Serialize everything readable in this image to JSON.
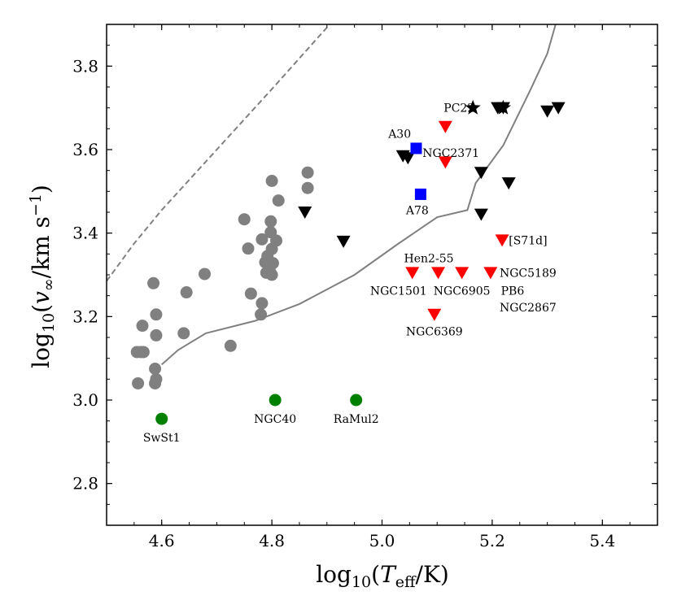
{
  "chart_data": {
    "type": "scatter",
    "xlabel": "log10(Teff/K)",
    "ylabel": "log10(v∞/km s−1)",
    "xlim": [
      4.5,
      5.5
    ],
    "ylim": [
      2.7,
      3.9
    ],
    "xticks": [
      "4.6",
      "4.8",
      "5.0",
      "5.2",
      "5.4"
    ],
    "yticks": [
      "2.8",
      "3.0",
      "3.2",
      "3.4",
      "3.6",
      "3.8"
    ],
    "grid": false,
    "series": [
      {
        "marker": "circle",
        "color": "#808080",
        "points": [
          [
            4.557,
            3.04
          ],
          [
            4.555,
            3.115
          ],
          [
            4.562,
            3.115
          ],
          [
            4.567,
            3.115
          ],
          [
            4.565,
            3.178
          ],
          [
            4.585,
            3.28
          ],
          [
            4.59,
            3.205
          ],
          [
            4.59,
            3.155
          ],
          [
            4.588,
            3.075
          ],
          [
            4.59,
            3.05
          ],
          [
            4.588,
            3.04
          ],
          [
            4.645,
            3.258
          ],
          [
            4.64,
            3.16
          ],
          [
            4.678,
            3.302
          ],
          [
            4.725,
            3.13
          ],
          [
            4.75,
            3.433
          ],
          [
            4.757,
            3.363
          ],
          [
            4.762,
            3.255
          ],
          [
            4.78,
            3.205
          ],
          [
            4.782,
            3.232
          ],
          [
            4.782,
            3.385
          ],
          [
            4.788,
            3.33
          ],
          [
            4.79,
            3.305
          ],
          [
            4.792,
            3.345
          ],
          [
            4.796,
            3.31
          ],
          [
            4.798,
            3.428
          ],
          [
            4.798,
            3.402
          ],
          [
            4.8,
            3.362
          ],
          [
            4.802,
            3.328
          ],
          [
            4.8,
            3.3
          ],
          [
            4.8,
            3.525
          ],
          [
            4.808,
            3.382
          ],
          [
            4.812,
            3.478
          ],
          [
            4.865,
            3.545
          ],
          [
            4.865,
            3.508
          ]
        ]
      },
      {
        "marker": "triangle-down",
        "color": "#000000",
        "points": [
          [
            4.86,
            3.45
          ],
          [
            4.93,
            3.38
          ],
          [
            5.038,
            3.585
          ],
          [
            5.047,
            3.58
          ],
          [
            5.18,
            3.545
          ],
          [
            5.18,
            3.445
          ],
          [
            5.23,
            3.52
          ],
          [
            5.21,
            3.7
          ],
          [
            5.22,
            3.7
          ],
          [
            5.3,
            3.692
          ],
          [
            5.32,
            3.7
          ]
        ]
      },
      {
        "marker": "star",
        "color": "#000000",
        "points": [
          [
            5.165,
            3.7
          ],
          [
            5.22,
            3.7
          ]
        ]
      },
      {
        "marker": "triangle-down",
        "color": "#ff0000",
        "points": [
          [
            5.115,
            3.655
          ],
          [
            5.115,
            3.57
          ],
          [
            5.055,
            3.305
          ],
          [
            5.102,
            3.305
          ],
          [
            5.145,
            3.305
          ],
          [
            5.197,
            3.305
          ],
          [
            5.218,
            3.383
          ],
          [
            5.095,
            3.205
          ]
        ]
      },
      {
        "marker": "square",
        "color": "#0000ff",
        "points": [
          [
            5.062,
            3.603
          ],
          [
            5.07,
            3.493
          ]
        ]
      },
      {
        "marker": "circle",
        "color": "#008000",
        "points": [
          [
            4.6,
            2.955
          ],
          [
            4.806,
            3.0
          ],
          [
            4.953,
            3.0
          ]
        ]
      }
    ],
    "solid_curve": [
      [
        4.6,
        3.085
      ],
      [
        4.63,
        3.12
      ],
      [
        4.68,
        3.16
      ],
      [
        4.77,
        3.19
      ],
      [
        4.85,
        3.23
      ],
      [
        4.95,
        3.3
      ],
      [
        5.03,
        3.375
      ],
      [
        5.1,
        3.438
      ],
      [
        5.155,
        3.455
      ],
      [
        5.17,
        3.52
      ],
      [
        5.22,
        3.61
      ],
      [
        5.27,
        3.745
      ],
      [
        5.3,
        3.83
      ],
      [
        5.315,
        3.9
      ]
    ],
    "dashed_curve": [
      [
        4.5,
        3.285
      ],
      [
        4.55,
        3.375
      ],
      [
        4.6,
        3.455
      ],
      [
        4.7,
        3.6
      ],
      [
        4.8,
        3.745
      ],
      [
        4.905,
        3.9
      ]
    ],
    "annotations": [
      {
        "text": "PC22",
        "x": 5.14,
        "y": 3.7
      },
      {
        "text": "A30",
        "x": 5.032,
        "y": 3.638
      },
      {
        "text": "NGC2371",
        "x": 5.125,
        "y": 3.592
      },
      {
        "text": "A78",
        "x": 5.064,
        "y": 3.455
      },
      {
        "text": "[S71d]",
        "x": 5.265,
        "y": 3.383
      },
      {
        "text": "Hen2-55",
        "x": 5.085,
        "y": 3.34
      },
      {
        "text": "NGC5189",
        "x": 5.265,
        "y": 3.305
      },
      {
        "text": "NGC1501",
        "x": 5.03,
        "y": 3.262
      },
      {
        "text": "NGC6905",
        "x": 5.145,
        "y": 3.262
      },
      {
        "text": "PB6",
        "x": 5.237,
        "y": 3.262
      },
      {
        "text": "NGC2867",
        "x": 5.265,
        "y": 3.222
      },
      {
        "text": "NGC6369",
        "x": 5.095,
        "y": 3.165
      },
      {
        "text": "SwSt1",
        "x": 4.6,
        "y": 2.91
      },
      {
        "text": "NGC40",
        "x": 4.806,
        "y": 2.955
      },
      {
        "text": "RaMul2",
        "x": 4.953,
        "y": 2.955
      }
    ]
  }
}
